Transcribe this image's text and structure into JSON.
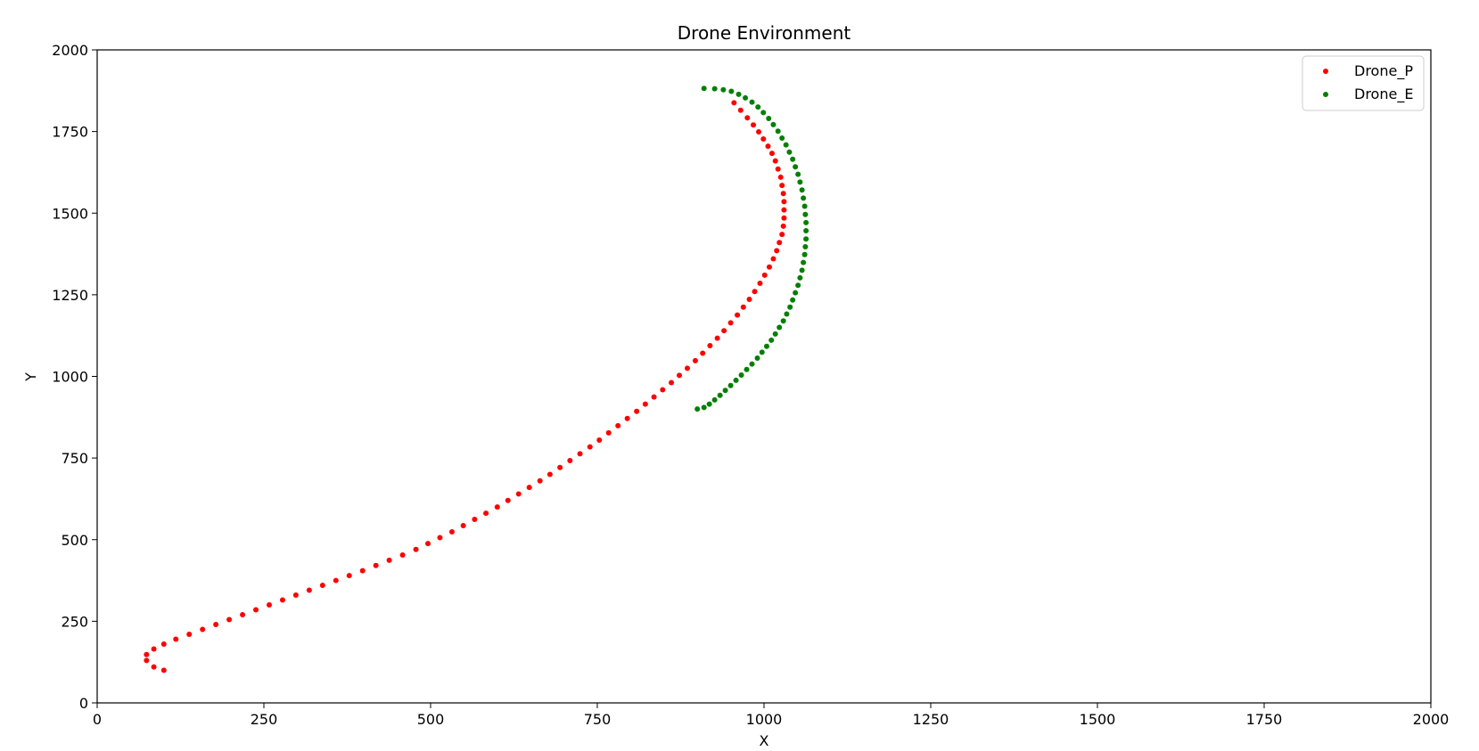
{
  "chart_data": {
    "type": "scatter",
    "title": "Drone Environment",
    "xlabel": "X",
    "ylabel": "Y",
    "xlim": [
      0,
      2000
    ],
    "ylim": [
      0,
      2000
    ],
    "xticks": [
      0,
      250,
      500,
      750,
      1000,
      1250,
      1500,
      1750,
      2000
    ],
    "yticks": [
      0,
      250,
      500,
      750,
      1000,
      1250,
      1500,
      1750,
      2000
    ],
    "grid": false,
    "legend_position": "top-right",
    "series": [
      {
        "name": "Drone_P",
        "color": "#ff0000",
        "x": [
          100,
          85,
          74,
          74,
          85,
          100,
          118,
          138,
          158,
          178,
          198,
          218,
          238,
          258,
          278,
          298,
          318,
          338,
          358,
          378,
          398,
          418,
          438,
          458,
          478,
          496,
          514,
          532,
          549,
          566,
          583,
          600,
          616,
          632,
          648,
          664,
          679,
          694,
          709,
          724,
          739,
          753,
          767,
          781,
          795,
          809,
          822,
          835,
          848,
          861,
          873,
          885,
          897,
          908,
          919,
          930,
          940,
          950,
          960,
          969,
          978,
          986,
          994,
          1001,
          1008,
          1014,
          1019,
          1023,
          1027,
          1029,
          1030,
          1030,
          1030,
          1029,
          1027,
          1025,
          1021,
          1017,
          1012,
          1006,
          999,
          992,
          984,
          975,
          965,
          955
        ],
        "y": [
          100,
          110,
          130,
          148,
          165,
          180,
          195,
          210,
          225,
          240,
          255,
          270,
          285,
          300,
          315,
          330,
          345,
          360,
          375,
          390,
          405,
          421,
          437,
          453,
          470,
          488,
          506,
          524,
          543,
          562,
          581,
          600,
          620,
          640,
          660,
          680,
          700,
          721,
          742,
          763,
          784,
          805,
          827,
          849,
          871,
          893,
          915,
          937,
          959,
          981,
          1003,
          1025,
          1048,
          1071,
          1094,
          1117,
          1140,
          1164,
          1188,
          1212,
          1236,
          1260,
          1285,
          1310,
          1335,
          1360,
          1385,
          1410,
          1435,
          1460,
          1485,
          1510,
          1535,
          1560,
          1585,
          1610,
          1635,
          1660,
          1683,
          1705,
          1727,
          1749,
          1770,
          1792,
          1815,
          1838
        ]
      },
      {
        "name": "Drone_E",
        "color": "#008000",
        "x": [
          900,
          910,
          918,
          926,
          934,
          942,
          950,
          958,
          966,
          974,
          982,
          990,
          997,
          1004,
          1011,
          1017,
          1023,
          1029,
          1034,
          1039,
          1043,
          1047,
          1051,
          1054,
          1057,
          1059,
          1061,
          1062,
          1063,
          1063,
          1063,
          1062,
          1061,
          1059,
          1057,
          1054,
          1051,
          1047,
          1043,
          1038,
          1033,
          1027,
          1021,
          1014,
          1007,
          999,
          991,
          982,
          972,
          962,
          951,
          939,
          926,
          910
        ],
        "y": [
          900,
          905,
          915,
          928,
          942,
          957,
          972,
          988,
          1004,
          1021,
          1038,
          1056,
          1074,
          1092,
          1111,
          1130,
          1150,
          1170,
          1191,
          1212,
          1234,
          1256,
          1279,
          1302,
          1325,
          1349,
          1373,
          1397,
          1421,
          1446,
          1471,
          1496,
          1521,
          1546,
          1571,
          1595,
          1619,
          1642,
          1665,
          1687,
          1709,
          1730,
          1751,
          1771,
          1790,
          1808,
          1825,
          1840,
          1853,
          1864,
          1873,
          1878,
          1881,
          1882
        ]
      }
    ]
  }
}
